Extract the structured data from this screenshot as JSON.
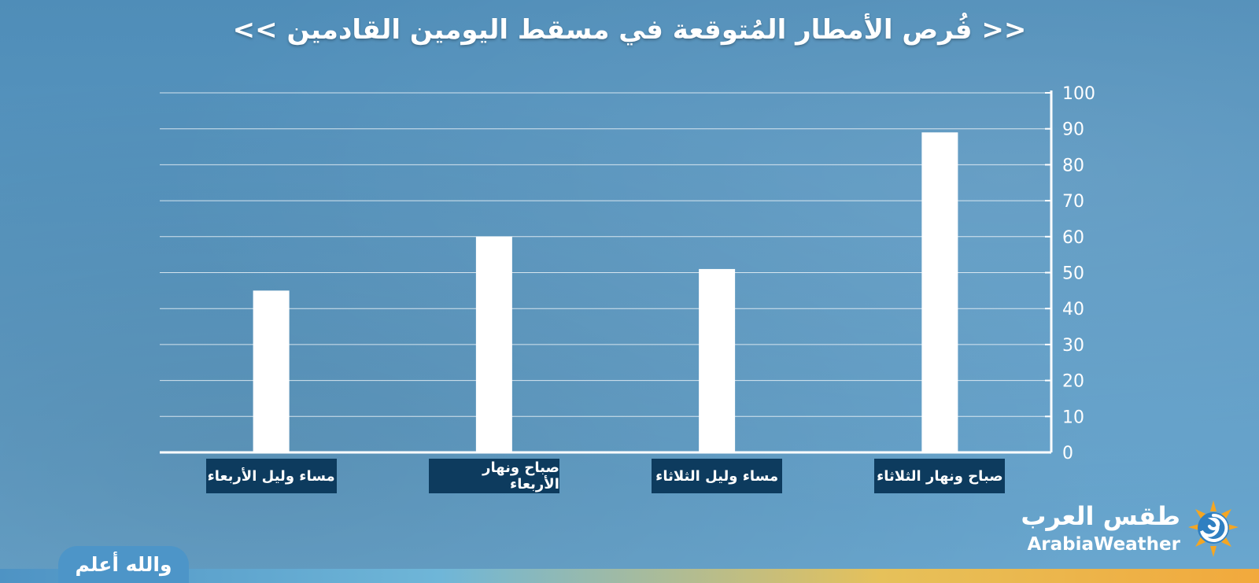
{
  "chart_data": {
    "type": "bar",
    "title": "<< فُرص الأمطار المُتوقعة في مسقط اليومين القادمين >>",
    "categories": [
      "مساء وليل الأربعاء",
      "صباح ونهار الأربعاء",
      "مساء وليل الثلاثاء",
      "صباح ونهار الثلاثاء"
    ],
    "values": [
      45,
      60,
      51,
      89
    ],
    "ylim": [
      0,
      100
    ],
    "yticks": [
      "0",
      "10",
      "20",
      "30",
      "40",
      "50",
      "60",
      "70",
      "80",
      "90",
      "100"
    ],
    "y_axis_side": "right",
    "grid": true,
    "bar_color": "#ffffff",
    "label_box_color": "#0d3b5e"
  },
  "branding": {
    "logo_arabic": "طقس العرب",
    "logo_english": "ArabiaWeather",
    "logo_icon": "sun-swirl-icon"
  },
  "footer": {
    "badge_text": "والله أعلم"
  }
}
